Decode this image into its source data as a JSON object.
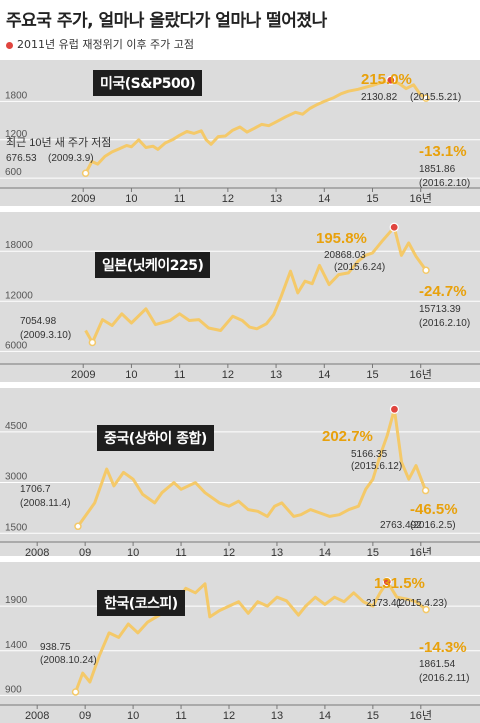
{
  "title": "주요국 주가, 얼마나 올랐다가 얼마나 떨어졌나",
  "legend": "2011년 유럽 재정위기 이후 주가 고점",
  "colors": {
    "line": "#f4c969",
    "peak": "#e0453f",
    "accent": "#e8a10c",
    "panel_bg": "#dcdcdc"
  },
  "chart_data": [
    {
      "type": "line",
      "name": "미국(S&P500)",
      "ylim": [
        540,
        2260
      ],
      "xlim": [
        2008.0,
        2016.4
      ],
      "y_ticks": [
        600,
        1200,
        1800
      ],
      "x_ticks": [
        {
          "v": 2009,
          "label": "2009"
        },
        {
          "v": 2010,
          "label": "10"
        },
        {
          "v": 2011,
          "label": "11"
        },
        {
          "v": 2012,
          "label": "12"
        },
        {
          "v": 2013,
          "label": "13"
        },
        {
          "v": 2014,
          "label": "14"
        },
        {
          "v": 2015,
          "label": "15"
        },
        {
          "v": 2016,
          "label": "16년"
        }
      ],
      "series": [
        {
          "x": [
            2009.05,
            2009.18,
            2009.3,
            2009.45,
            2009.6,
            2009.75,
            2009.9,
            2010.0,
            2010.15,
            2010.3,
            2010.45,
            2010.55,
            2010.7,
            2010.85,
            2011.0,
            2011.15,
            2011.3,
            2011.45,
            2011.55,
            2011.65,
            2011.8,
            2011.95,
            2012.1,
            2012.25,
            2012.4,
            2012.55,
            2012.7,
            2012.85,
            2013.0,
            2013.2,
            2013.4,
            2013.55,
            2013.7,
            2013.85,
            2014.0,
            2014.2,
            2014.35,
            2014.5,
            2014.7,
            2014.85,
            2015.0,
            2015.2,
            2015.38,
            2015.55,
            2015.7,
            2015.85,
            2016.0,
            2016.11
          ],
          "y": [
            676.53,
            860,
            820,
            940,
            1010,
            1060,
            1110,
            1090,
            1200,
            1080,
            1100,
            1050,
            1150,
            1200,
            1270,
            1330,
            1300,
            1340,
            1200,
            1130,
            1250,
            1260,
            1350,
            1400,
            1320,
            1380,
            1440,
            1420,
            1480,
            1560,
            1630,
            1600,
            1690,
            1750,
            1800,
            1860,
            1920,
            1960,
            1990,
            2020,
            2050,
            2100,
            2130.82,
            2080,
            2000,
            2060,
            1900,
            1851.86
          ]
        }
      ],
      "peak": {
        "x": 2015.38,
        "y": 2130.82
      },
      "texts": {
        "pct_up": "215.0%",
        "peak_label": "2130.82",
        "peak_date": "(2015.5.21)",
        "pct_down": "-13.1%",
        "end_label": "1851.86",
        "end_date": "(2016.2.10)",
        "low_caption": "최근 10년 새 주가 저점",
        "low_label": "676.53",
        "low_date": "(2009.3.9)"
      }
    },
    {
      "type": "line",
      "name": "일본(닛케이225)",
      "ylim": [
        5200,
        21500
      ],
      "xlim": [
        2008.0,
        2016.4
      ],
      "y_ticks": [
        6000,
        12000,
        18000
      ],
      "x_ticks": [
        {
          "v": 2009,
          "label": "2009"
        },
        {
          "v": 2010,
          "label": "10"
        },
        {
          "v": 2011,
          "label": "11"
        },
        {
          "v": 2012,
          "label": "12"
        },
        {
          "v": 2013,
          "label": "13"
        },
        {
          "v": 2014,
          "label": "14"
        },
        {
          "v": 2015,
          "label": "15"
        },
        {
          "v": 2016,
          "label": "16년"
        }
      ],
      "series": [
        {
          "x": [
            2009.05,
            2009.19,
            2009.4,
            2009.6,
            2009.8,
            2010.0,
            2010.3,
            2010.5,
            2010.8,
            2011.0,
            2011.2,
            2011.4,
            2011.6,
            2011.85,
            2012.1,
            2012.3,
            2012.45,
            2012.6,
            2012.8,
            2012.95,
            2013.1,
            2013.3,
            2013.45,
            2013.6,
            2013.75,
            2013.9,
            2014.1,
            2014.3,
            2014.5,
            2014.7,
            2014.85,
            2015.0,
            2015.2,
            2015.45,
            2015.6,
            2015.75,
            2015.9,
            2016.11
          ],
          "y": [
            8500,
            7054.98,
            9800,
            9100,
            10500,
            9400,
            11100,
            9200,
            9700,
            10500,
            9700,
            9800,
            8800,
            8500,
            10200,
            9700,
            8900,
            8700,
            9300,
            10400,
            12500,
            15600,
            13000,
            14400,
            14100,
            16300,
            14000,
            15200,
            15400,
            16800,
            17500,
            17800,
            19200,
            20868.03,
            17500,
            19000,
            17400,
            15713.39
          ]
        }
      ],
      "peak": {
        "x": 2015.45,
        "y": 20868.03
      },
      "texts": {
        "pct_up": "195.8%",
        "peak_label": "20868.03",
        "peak_date": "(2015.6.24)",
        "pct_down": "-24.7%",
        "end_label": "15713.39",
        "end_date": "(2016.2.10)",
        "low_label": "7054.98",
        "low_date": "(2009.3.10)"
      }
    },
    {
      "type": "line",
      "name": "중국(상하이 종합)",
      "ylim": [
        1420,
        5500
      ],
      "xlim": [
        2007.85,
        2016.4
      ],
      "y_ticks": [
        1500,
        3000,
        4500
      ],
      "x_ticks": [
        {
          "v": 2008,
          "label": "2008"
        },
        {
          "v": 2009,
          "label": "09"
        },
        {
          "v": 2010,
          "label": "10"
        },
        {
          "v": 2011,
          "label": "11"
        },
        {
          "v": 2012,
          "label": "12"
        },
        {
          "v": 2013,
          "label": "13"
        },
        {
          "v": 2014,
          "label": "14"
        },
        {
          "v": 2015,
          "label": "15"
        },
        {
          "v": 2016,
          "label": "16년"
        }
      ],
      "series": [
        {
          "x": [
            2008.85,
            2009.2,
            2009.45,
            2009.6,
            2009.8,
            2010.0,
            2010.2,
            2010.45,
            2010.6,
            2010.85,
            2011.0,
            2011.3,
            2011.5,
            2011.8,
            2012.0,
            2012.2,
            2012.4,
            2012.6,
            2012.8,
            2012.95,
            2013.1,
            2013.35,
            2013.5,
            2013.7,
            2013.9,
            2014.1,
            2014.3,
            2014.5,
            2014.7,
            2014.85,
            2015.0,
            2015.15,
            2015.3,
            2015.45,
            2015.6,
            2015.75,
            2015.9,
            2016.1
          ],
          "y": [
            1706.7,
            2400,
            3400,
            2900,
            3300,
            3100,
            2650,
            2400,
            2700,
            3000,
            2800,
            3000,
            2700,
            2400,
            2300,
            2450,
            2200,
            2150,
            2000,
            2300,
            2400,
            2000,
            2050,
            2200,
            2100,
            2000,
            2050,
            2200,
            2300,
            2800,
            3100,
            3800,
            4400,
            5166.35,
            3600,
            3100,
            3500,
            2763.492
          ]
        }
      ],
      "peak": {
        "x": 2015.45,
        "y": 5166.35
      },
      "texts": {
        "pct_up": "202.7%",
        "peak_label": "5166.35",
        "peak_date": "(2015.6.12)",
        "pct_down": "-46.5%",
        "end_label": "2763.492",
        "end_date": "(2016.2.5)",
        "low_label": "1706.7",
        "low_date": "(2008.11.4)"
      }
    },
    {
      "type": "line",
      "name": "한국(코스피)",
      "ylim": [
        860,
        2260
      ],
      "xlim": [
        2007.85,
        2016.4
      ],
      "y_ticks": [
        900,
        1400,
        1900
      ],
      "x_ticks": [
        {
          "v": 2008,
          "label": "2008"
        },
        {
          "v": 2009,
          "label": "09"
        },
        {
          "v": 2010,
          "label": "10"
        },
        {
          "v": 2011,
          "label": "11"
        },
        {
          "v": 2012,
          "label": "12"
        },
        {
          "v": 2013,
          "label": "13"
        },
        {
          "v": 2014,
          "label": "14"
        },
        {
          "v": 2015,
          "label": "15"
        },
        {
          "v": 2016,
          "label": "16년"
        }
      ],
      "series": [
        {
          "x": [
            2008.8,
            2008.95,
            2009.1,
            2009.3,
            2009.5,
            2009.7,
            2009.9,
            2010.1,
            2010.3,
            2010.55,
            2010.7,
            2010.9,
            2011.1,
            2011.3,
            2011.5,
            2011.6,
            2011.8,
            2012.0,
            2012.2,
            2012.4,
            2012.6,
            2012.8,
            2013.0,
            2013.2,
            2013.45,
            2013.6,
            2013.8,
            2014.0,
            2014.2,
            2014.4,
            2014.6,
            2014.8,
            2015.0,
            2015.15,
            2015.3,
            2015.5,
            2015.7,
            2015.9,
            2016.11
          ],
          "y": [
            938.75,
            1150,
            1050,
            1350,
            1600,
            1550,
            1700,
            1600,
            1720,
            1800,
            1900,
            1950,
            2100,
            2050,
            2150,
            1780,
            1850,
            1900,
            1950,
            1820,
            1950,
            1900,
            2000,
            1960,
            1800,
            1900,
            2000,
            1920,
            2000,
            1950,
            2050,
            1950,
            1900,
            2050,
            2173.41,
            2000,
            1980,
            1950,
            1861.54
          ]
        }
      ],
      "peak": {
        "x": 2015.3,
        "y": 2173.41
      },
      "texts": {
        "pct_up": "131.5%",
        "peak_label": "2173.41",
        "peak_date": "(2015.4.23)",
        "pct_down": "-14.3%",
        "end_label": "1861.54",
        "end_date": "(2016.2.11)",
        "low_label": "938.75",
        "low_date": "(2008.10.24)"
      }
    }
  ]
}
